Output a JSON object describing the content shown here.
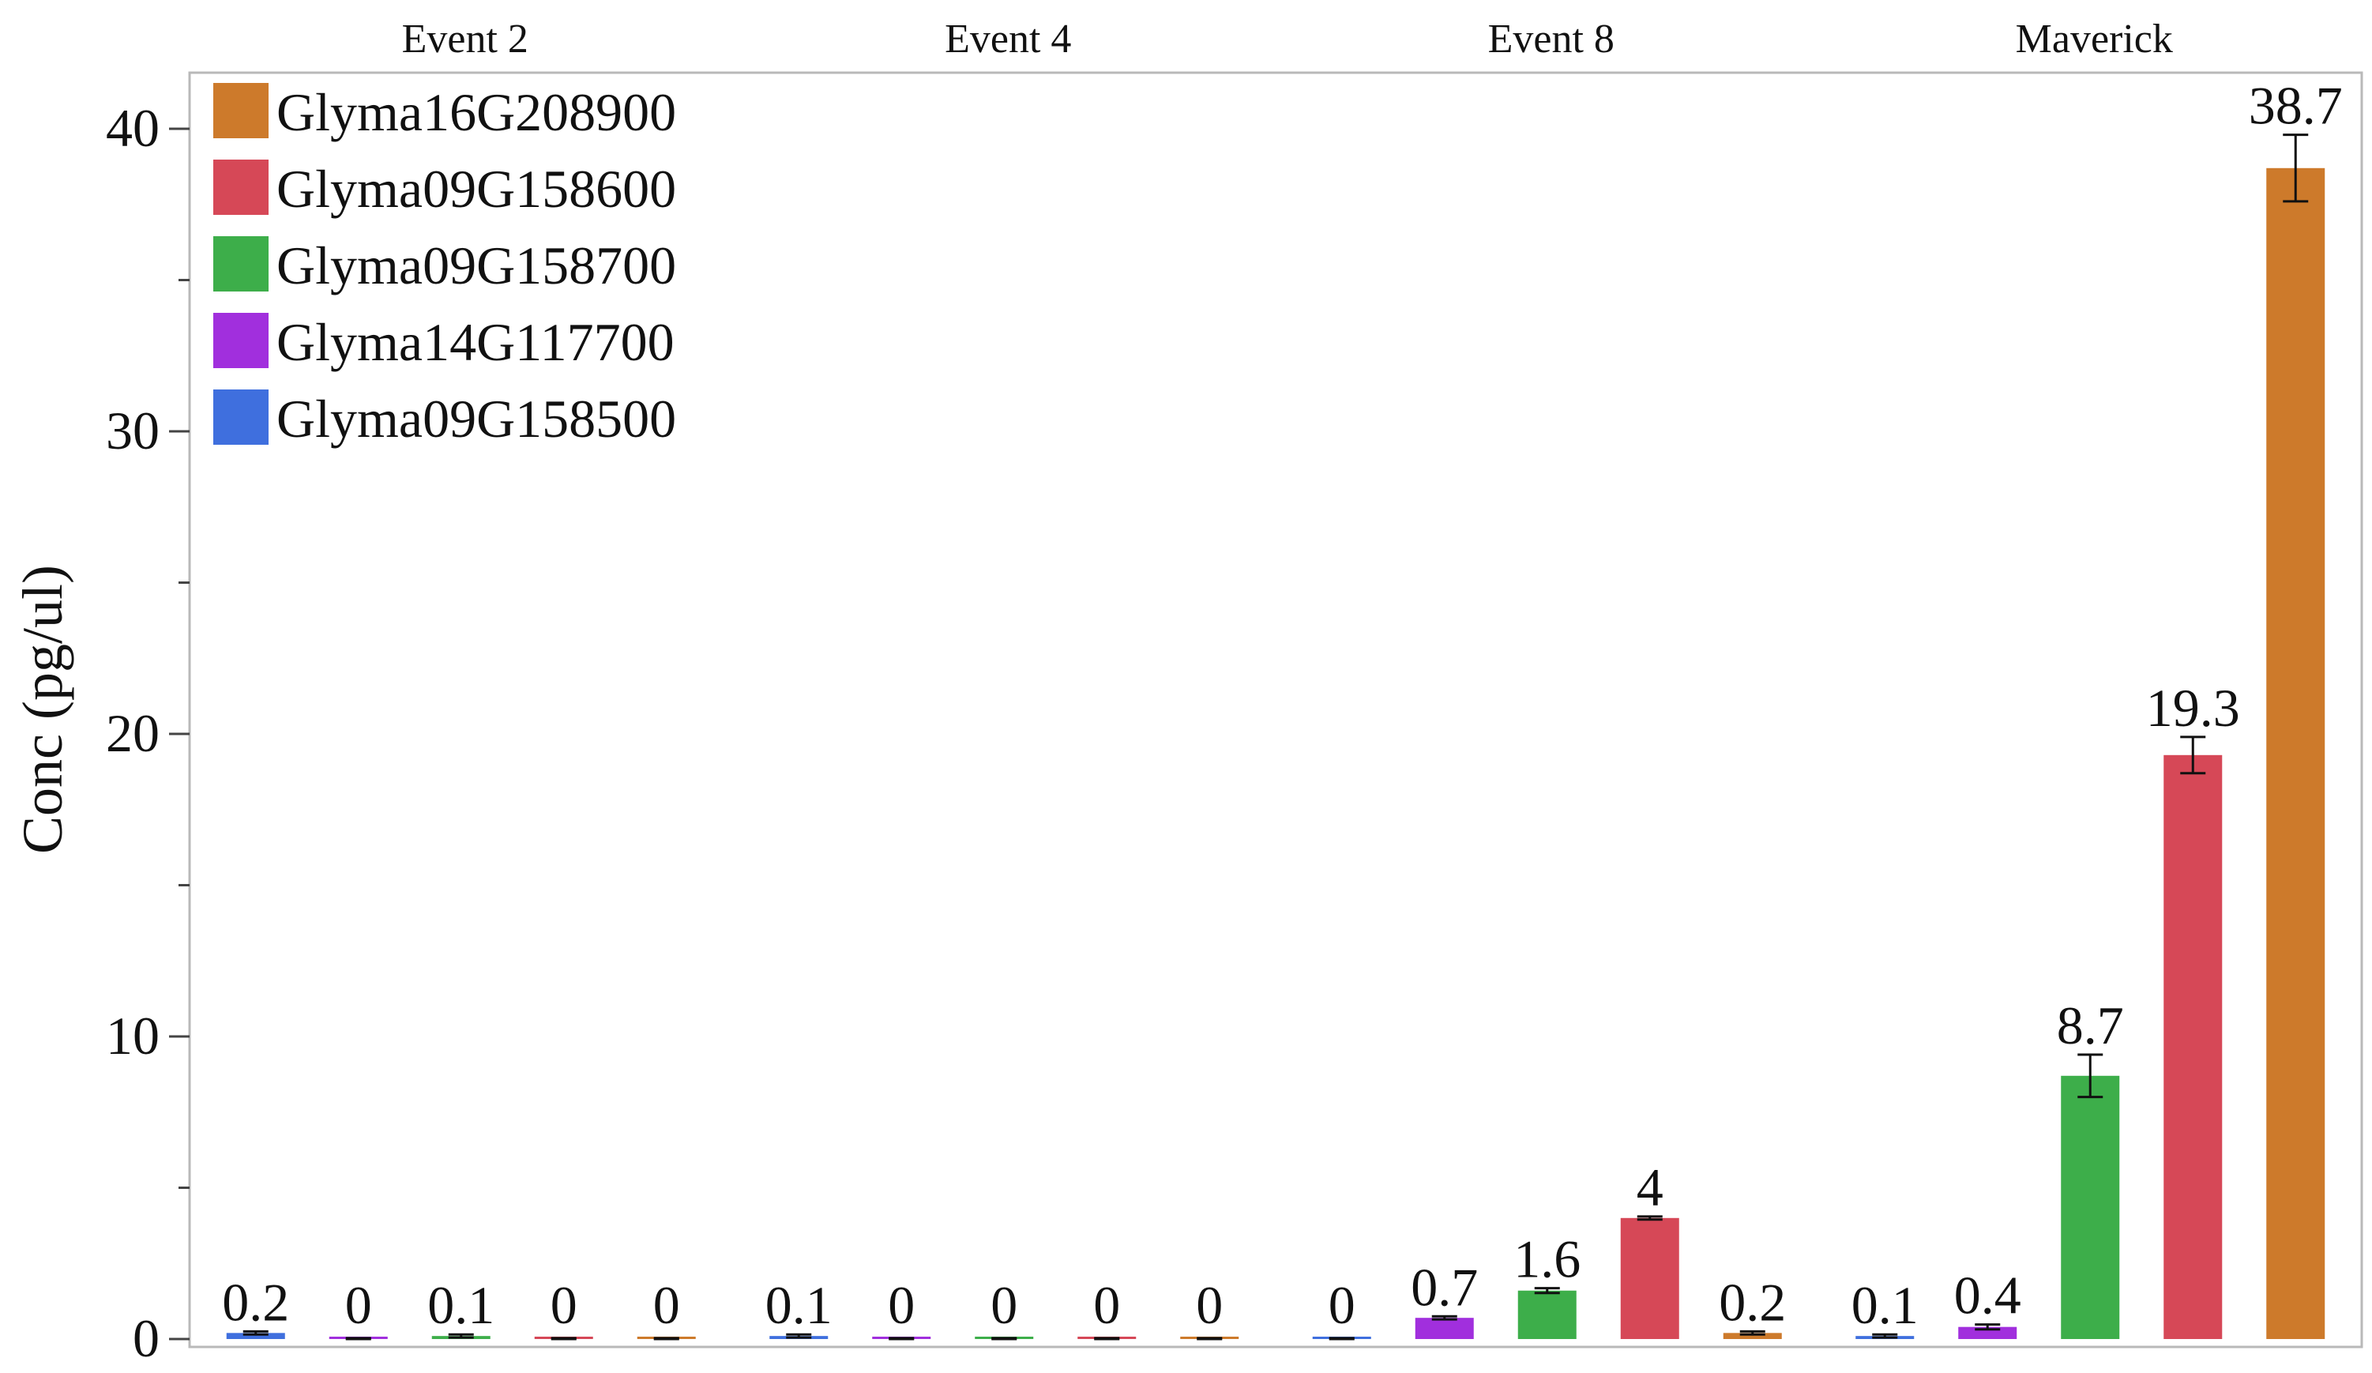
{
  "chart_data": {
    "type": "bar",
    "ylabel": "Conc (pg/ul)",
    "xlabel": "",
    "ylim": [
      0,
      40
    ],
    "yticks": [
      0,
      10,
      20,
      30,
      40
    ],
    "grid": false,
    "legend_position": "top-left",
    "groups": [
      "Event 2",
      "Event 4",
      "Event 8",
      "Maverick"
    ],
    "series": [
      {
        "name": "Glyma16G208900",
        "color": "#CD7A2B"
      },
      {
        "name": "Glyma09G158600",
        "color": "#D64857"
      },
      {
        "name": "Glyma09G158700",
        "color": "#3DAE4A"
      },
      {
        "name": "Glyma14G117700",
        "color": "#A12FDD"
      },
      {
        "name": "Glyma09G158500",
        "color": "#3F6FDE"
      }
    ],
    "bars": [
      {
        "group": "Event 2",
        "series": "Glyma09G158500",
        "value": 0.2,
        "label": "0.2",
        "error": 0.05
      },
      {
        "group": "Event 2",
        "series": "Glyma14G117700",
        "value": 0.0,
        "label": "0",
        "error": 0.03
      },
      {
        "group": "Event 2",
        "series": "Glyma09G158700",
        "value": 0.1,
        "label": "0.1",
        "error": 0.05
      },
      {
        "group": "Event 2",
        "series": "Glyma09G158600",
        "value": 0.0,
        "label": "0",
        "error": 0.03
      },
      {
        "group": "Event 2",
        "series": "Glyma16G208900",
        "value": 0.0,
        "label": "0",
        "error": 0.03
      },
      {
        "group": "Event 4",
        "series": "Glyma09G158500",
        "value": 0.1,
        "label": "0.1",
        "error": 0.05
      },
      {
        "group": "Event 4",
        "series": "Glyma14G117700",
        "value": 0.0,
        "label": "0",
        "error": 0.03
      },
      {
        "group": "Event 4",
        "series": "Glyma09G158700",
        "value": 0.0,
        "label": "0",
        "error": 0.03
      },
      {
        "group": "Event 4",
        "series": "Glyma09G158600",
        "value": 0.0,
        "label": "0",
        "error": 0.03
      },
      {
        "group": "Event 4",
        "series": "Glyma16G208900",
        "value": 0.0,
        "label": "0",
        "error": 0.03
      },
      {
        "group": "Event 8",
        "series": "Glyma09G158500",
        "value": 0.0,
        "label": "0",
        "error": 0.03
      },
      {
        "group": "Event 8",
        "series": "Glyma14G117700",
        "value": 0.7,
        "label": "0.7",
        "error": 0.05
      },
      {
        "group": "Event 8",
        "series": "Glyma09G158700",
        "value": 1.6,
        "label": "1.6",
        "error": 0.08
      },
      {
        "group": "Event 8",
        "series": "Glyma09G158600",
        "value": 4.0,
        "label": "4",
        "error": 0.05
      },
      {
        "group": "Event 8",
        "series": "Glyma16G208900",
        "value": 0.2,
        "label": "0.2",
        "error": 0.05
      },
      {
        "group": "Maverick",
        "series": "Glyma09G158500",
        "value": 0.1,
        "label": "0.1",
        "error": 0.05
      },
      {
        "group": "Maverick",
        "series": "Glyma14G117700",
        "value": 0.4,
        "label": "0.4",
        "error": 0.08
      },
      {
        "group": "Maverick",
        "series": "Glyma09G158700",
        "value": 8.7,
        "label": "8.7",
        "error": 0.7
      },
      {
        "group": "Maverick",
        "series": "Glyma09G158600",
        "value": 19.3,
        "label": "19.3",
        "error": 0.6
      },
      {
        "group": "Maverick",
        "series": "Glyma16G208900",
        "value": 38.7,
        "label": "38.7",
        "error": 1.1
      }
    ]
  }
}
